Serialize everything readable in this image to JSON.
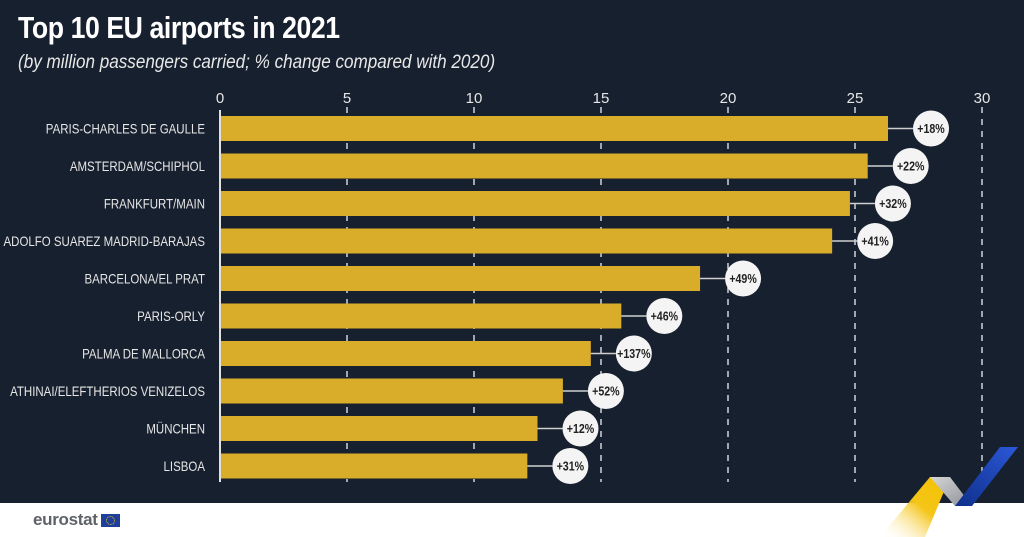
{
  "header": {
    "title": "Top 10 EU airports in 2021",
    "subtitle": "(by million passengers carried; % change compared with 2020)"
  },
  "footer": {
    "brand": "eurostat",
    "flag_icon": "eu-flag-icon"
  },
  "colors": {
    "background": "#17202e",
    "bar": "#d9ad2a",
    "grid": "#d0d4da",
    "label": "#e6e6e6",
    "badge_bg": "#f4f4f4",
    "badge_text": "#222222"
  },
  "chart_data": {
    "type": "bar",
    "orientation": "horizontal",
    "title": "Top 10 EU airports in 2021",
    "subtitle": "(by million passengers carried; % change compared with 2020)",
    "xlabel": "",
    "ylabel": "",
    "xlim": [
      0,
      30
    ],
    "xticks": [
      0,
      5,
      10,
      15,
      20,
      25,
      30
    ],
    "xtick_labels": [
      "0",
      "5",
      "10",
      "15",
      "20",
      "25",
      "30"
    ],
    "grid": "vertical dashed",
    "categories": [
      "PARIS-CHARLES DE GAULLE",
      "AMSTERDAM/SCHIPHOL",
      "FRANKFURT/MAIN",
      "ADOLFO SUAREZ MADRID-BARAJAS",
      "BARCELONA/EL PRAT",
      "PARIS-ORLY",
      "PALMA DE MALLORCA",
      "ATHINAI/ELEFTHERIOS VENIZELOS",
      "MÜNCHEN",
      "LISBOA"
    ],
    "values": [
      26.3,
      25.5,
      24.8,
      24.1,
      18.9,
      15.8,
      14.6,
      13.5,
      12.5,
      12.1
    ],
    "annotations": [
      "+18%",
      "+22%",
      "+32%",
      "+41%",
      "+49%",
      "+46%",
      "+137%",
      "+52%",
      "+12%",
      "+31%"
    ]
  }
}
